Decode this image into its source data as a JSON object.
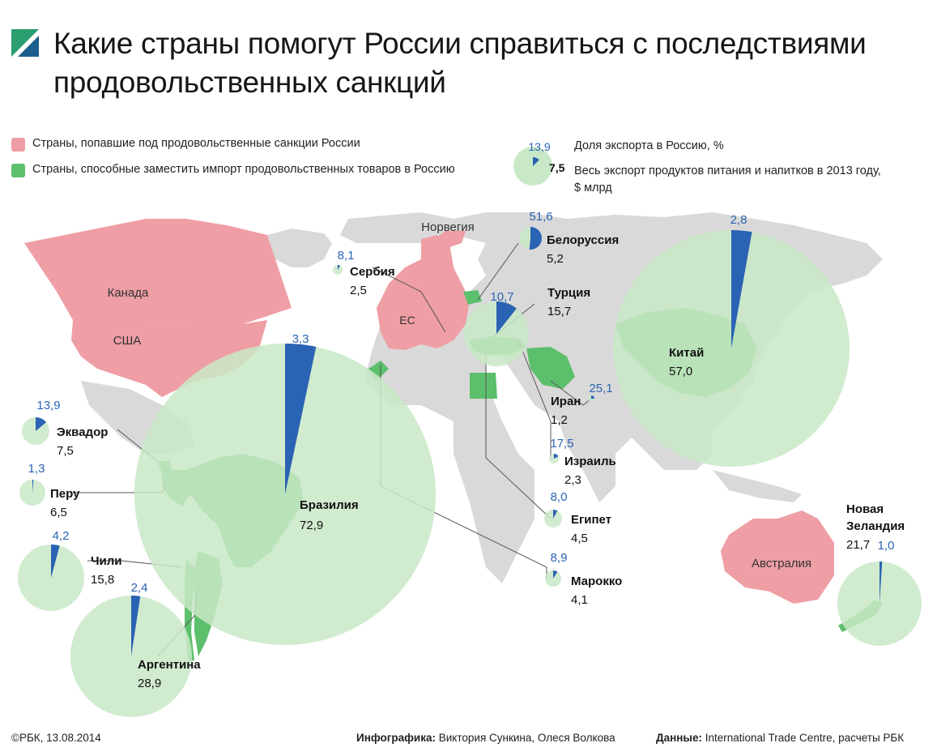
{
  "title": "Какие страны помогут России справиться с последствиями продовольственных санкций",
  "legend": {
    "sanctioned": "Страны, попавшие под продовольственные санкции России",
    "substitutes": "Страны, способные заместить импорт продовольственных товаров в Россию",
    "example_share": "13,9",
    "example_value": "7,5",
    "share_label": "Доля экспорта в Россию, %",
    "value_label_line1": "Весь экспорт продуктов питания и напитков в 2013 году,",
    "value_label_line2": "$ млрд"
  },
  "colors": {
    "sanctioned": "#ee9ea4",
    "substitute_country": "#5cbf6c",
    "circle_fill": "#c9e8c7",
    "share": "#2a63b3",
    "land": "#d9d9d9",
    "value_text": "#2a63b3"
  },
  "region_labels": {
    "canada": "Канада",
    "usa": "США",
    "eu": "ЕС",
    "norway": "Норвегия",
    "australia": "Австралия"
  },
  "countries": [
    {
      "name": "Бразилия",
      "share": "3,3",
      "value": "72,9",
      "share_pct": 3.3
    },
    {
      "name": "Китай",
      "share": "2,8",
      "value": "57,0",
      "share_pct": 2.8
    },
    {
      "name": "Аргентина",
      "share": "2,4",
      "value": "28,9",
      "share_pct": 2.4
    },
    {
      "name": "Новая Зеландия",
      "name_line1": "Новая",
      "name_line2": "Зеландия",
      "share": "1,0",
      "value": "21,7",
      "share_pct": 1.0
    },
    {
      "name": "Чили",
      "share": "4,2",
      "value": "15,8",
      "share_pct": 4.2
    },
    {
      "name": "Турция",
      "share": "10,7",
      "value": "15,7",
      "share_pct": 10.7
    },
    {
      "name": "Эквадор",
      "share": "13,9",
      "value": "7,5",
      "share_pct": 13.9
    },
    {
      "name": "Перу",
      "share": "1,3",
      "value": "6,5",
      "share_pct": 1.3
    },
    {
      "name": "Белоруссия",
      "share": "51,6",
      "value": "5,2",
      "share_pct": 51.6
    },
    {
      "name": "Египет",
      "share": "8,0",
      "value": "4,5",
      "share_pct": 8.0
    },
    {
      "name": "Марокко",
      "share": "8,9",
      "value": "4,1",
      "share_pct": 8.9
    },
    {
      "name": "Сербия",
      "share": "8,1",
      "value": "2,5",
      "share_pct": 8.1
    },
    {
      "name": "Израиль",
      "share": "17,5",
      "value": "2,3",
      "share_pct": 17.5
    },
    {
      "name": "Иран",
      "share": "25,1",
      "value": "1,2",
      "share_pct": 25.1
    }
  ],
  "footer": {
    "copyright": "©РБК, 13.08.2014",
    "infographic_label": "Инфографика:",
    "infographic_authors": "Виктория Сункина, Олеся Волкова",
    "data_label": "Данные:",
    "data_source": "International Trade Centre, расчеты РБК"
  }
}
